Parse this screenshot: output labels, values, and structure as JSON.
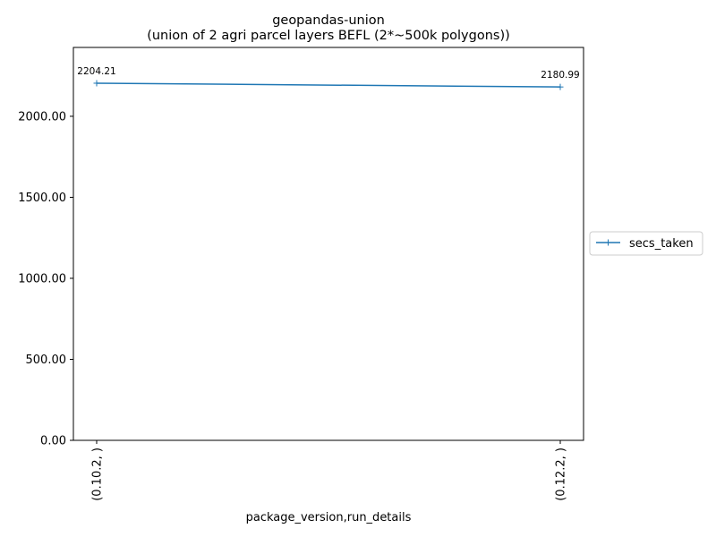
{
  "chart_data": {
    "type": "line",
    "title": "geopandas-union",
    "subtitle": "(union of 2 agri parcel layers BEFL (2*~500k polygons))",
    "xlabel": "package_version,run_details",
    "ylabel": "",
    "categories": [
      "(0.10.2, )",
      "(0.12.2, )"
    ],
    "series": [
      {
        "name": "secs_taken",
        "values": [
          2204.21,
          2180.99
        ],
        "data_labels": [
          "2204.21",
          "2180.99"
        ],
        "color": "#1f77b4",
        "marker": "+"
      }
    ],
    "yticks": [
      "0.00",
      "500.00",
      "1000.00",
      "1500.00",
      "2000.00"
    ],
    "ylim": [
      0,
      2425
    ],
    "grid": false,
    "legend_position": "right-outside"
  }
}
